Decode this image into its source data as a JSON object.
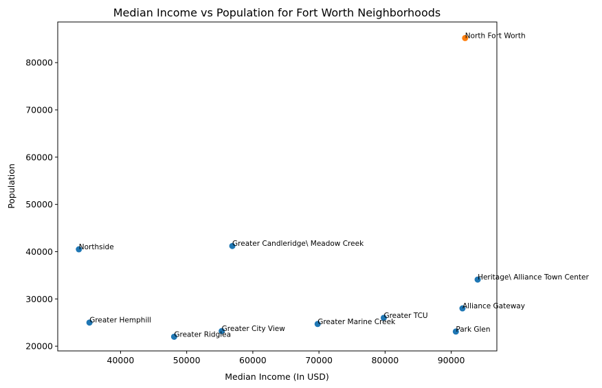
{
  "chart_data": {
    "type": "scatter",
    "title": "Median Income vs Population for Fort Worth Neighborhoods",
    "xlabel": "Median Income (In USD)",
    "ylabel": "Population",
    "xlim": [
      30500,
      96900
    ],
    "ylim": [
      19000,
      88600
    ],
    "xticks": [
      40000,
      50000,
      60000,
      70000,
      80000,
      90000
    ],
    "yticks": [
      20000,
      30000,
      40000,
      50000,
      60000,
      70000,
      80000
    ],
    "grid": false,
    "colors": {
      "default": "#1f77b4",
      "highlight": "#ff7f0e"
    },
    "points": [
      {
        "label": "North Fort Worth",
        "x": 92100,
        "y": 85200,
        "highlight": true
      },
      {
        "label": "Northside",
        "x": 33700,
        "y": 40500,
        "highlight": false
      },
      {
        "label": "Greater Candleridge\\ Meadow Creek",
        "x": 56900,
        "y": 41200,
        "highlight": false
      },
      {
        "label": "Heritage\\ Alliance Town Center",
        "x": 94000,
        "y": 34100,
        "highlight": false
      },
      {
        "label": "Alliance Gateway",
        "x": 91700,
        "y": 28000,
        "highlight": false
      },
      {
        "label": "Greater TCU",
        "x": 79800,
        "y": 26000,
        "highlight": false
      },
      {
        "label": "Greater Hemphill",
        "x": 35300,
        "y": 25000,
        "highlight": false
      },
      {
        "label": "Greater Marine Creek",
        "x": 69800,
        "y": 24700,
        "highlight": false
      },
      {
        "label": "Greater City View",
        "x": 55300,
        "y": 23200,
        "highlight": false
      },
      {
        "label": "Park Glen",
        "x": 90700,
        "y": 23100,
        "highlight": false
      },
      {
        "label": "Greater Ridglea",
        "x": 48100,
        "y": 22000,
        "highlight": false
      }
    ]
  }
}
